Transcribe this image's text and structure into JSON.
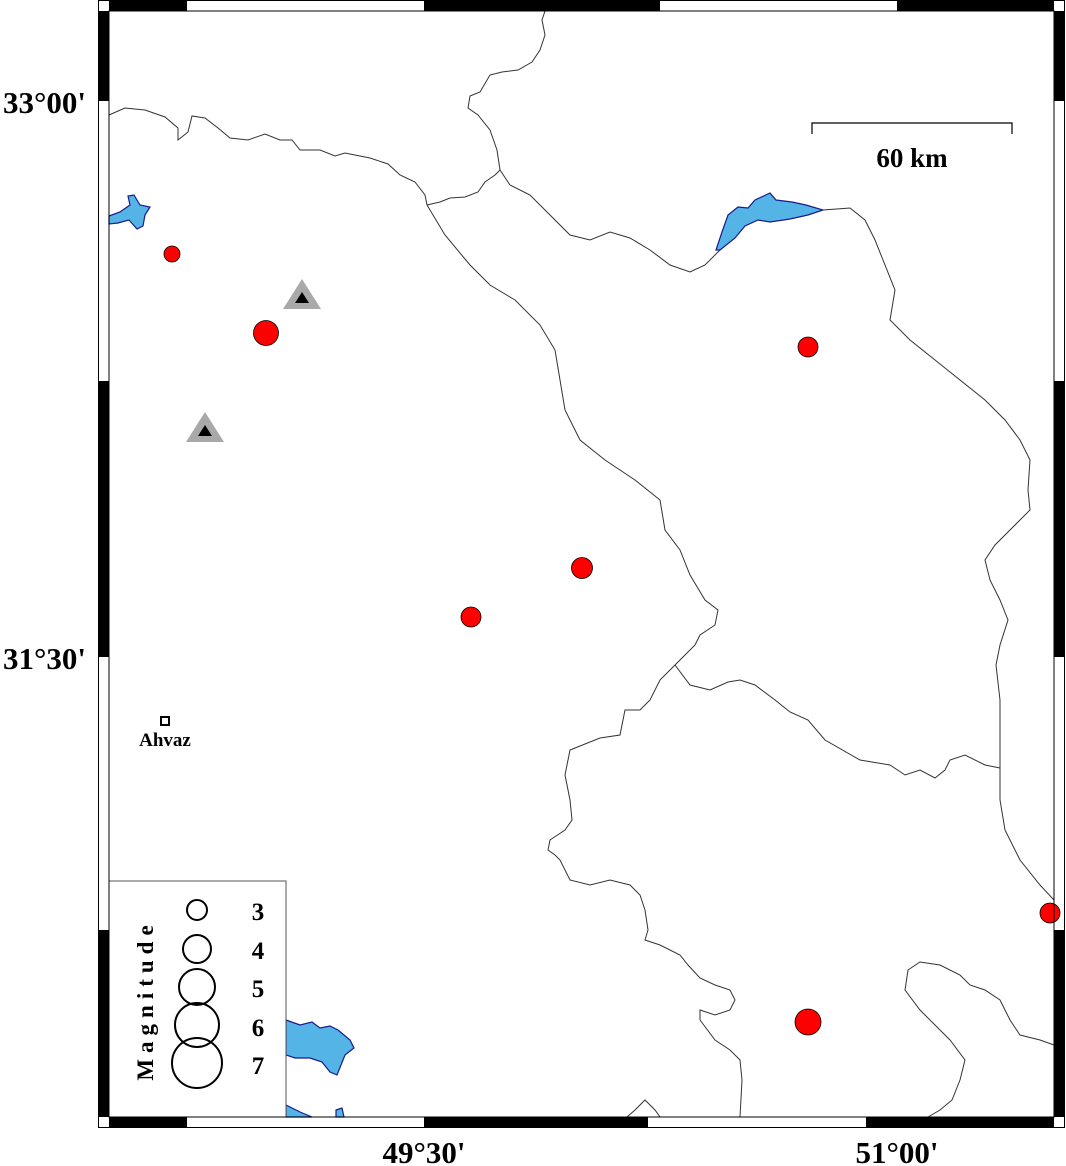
{
  "map": {
    "lat_labels": [
      "33°00'",
      "31°30'"
    ],
    "lon_labels": [
      "49°30'",
      "51°00'"
    ],
    "scale_bar": {
      "label": "60 km"
    },
    "city": {
      "name": "Ahvaz"
    },
    "colors": {
      "water": "#55B4E6",
      "water_outline": "#1A1A8C",
      "earthquake": "#FF0000",
      "station_outer": "#A9A9A9",
      "station_inner": "#000000",
      "boundary": "#333333"
    },
    "earthquakes": [
      {
        "magnitude": 3.2
      },
      {
        "magnitude": 4.4
      },
      {
        "magnitude": 3.7
      },
      {
        "magnitude": 3.7
      },
      {
        "magnitude": 3.5
      },
      {
        "magnitude": 3.7
      },
      {
        "magnitude": 4.4
      }
    ],
    "stations_count_icon": "triangle-icon",
    "legend": {
      "title": "Magnitude",
      "items": [
        "3",
        "4",
        "5",
        "6",
        "7"
      ]
    }
  }
}
